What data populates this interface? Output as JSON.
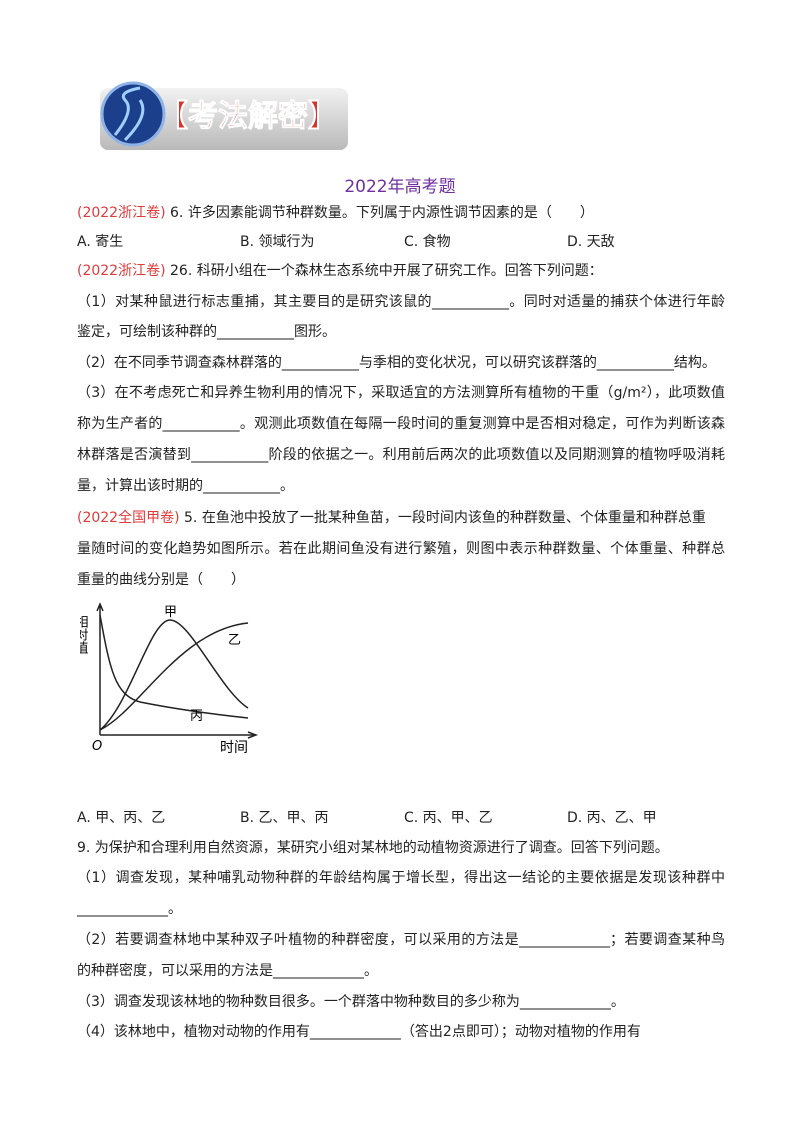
{
  "header": {
    "banner": "【考法解密】",
    "title": "2022年高考题"
  },
  "q1": {
    "source": "(2022浙江卷)",
    "stem": "6. 许多因素能调节种群数量。下列属于内源性调节因素的是（　　）",
    "options": [
      "A. 寄生",
      "B. 领域行为",
      "C. 食物",
      "D. 天敌"
    ]
  },
  "q2": {
    "source": "(2022浙江卷)",
    "stem": "26. 科研小组在一个森林生态系统中开展了研究工作。回答下列问题：",
    "lines": [
      "（1）对某种鼠进行标志重捕，其主要目的是研究该鼠的___________。同时对适量的捕获个体进行年龄",
      "鉴定，可绘制该种群的___________图形。",
      "（2）在不同季节调查森林群落的___________与季相的变化状况，可以研究该群落的___________结构。",
      "（3）在不考虑死亡和异养生物利用的情况下，采取适宜的方法测算所有植物的干重（g/m²），此项数值",
      "称为生产者的___________。观测此项数值在每隔一段时间的重复测算中是否相对稳定，可作为判断该森",
      "林群落是否演替到___________阶段的依据之一。利用前后两次的此项数值以及同期测算的植物呼吸消耗",
      "量，计算出该时期的___________。"
    ]
  },
  "q3": {
    "source": "(2022全国甲卷)",
    "stem": "5. 在鱼池中投放了一批某种鱼苗，一段时间内该鱼的种群数量、个体重量和种群总重",
    "lines": [
      "量随时间的变化趋势如图所示。若在此期间鱼没有进行繁殖，则图中表示种群数量、个体重量、种群总",
      "重量的曲线分别是（　　）"
    ],
    "figure": {
      "y_label": "相对值",
      "x_label": "时间",
      "origin": "O",
      "curves": [
        "甲",
        "乙",
        "丙"
      ]
    },
    "options": [
      "A. 甲、丙、乙",
      "B. 乙、甲、丙",
      "C. 丙、甲、乙",
      "D. 丙、乙、甲"
    ]
  },
  "q4": {
    "lines": [
      "9. 为保护和合理利用自然资源，某研究小组对某林地的动植物资源进行了调查。回答下列问题。",
      "（1）调查发现，某种哺乳动物种群的年龄结构属于增长型，得出这一结论的主要依据是发现该种群中",
      "_____________。",
      "（2）若要调查林地中某种双子叶植物的种群密度，可以采用的方法是_____________；若要调查某种鸟",
      "的种群密度，可以采用的方法是_____________。",
      "（3）调查发现该林地的物种数目很多。一个群落中物种数目的多少称为_____________。",
      "（4）该林地中，植物对动物的作用有_____________（答出2点即可）；动物对植物的作用有"
    ]
  }
}
